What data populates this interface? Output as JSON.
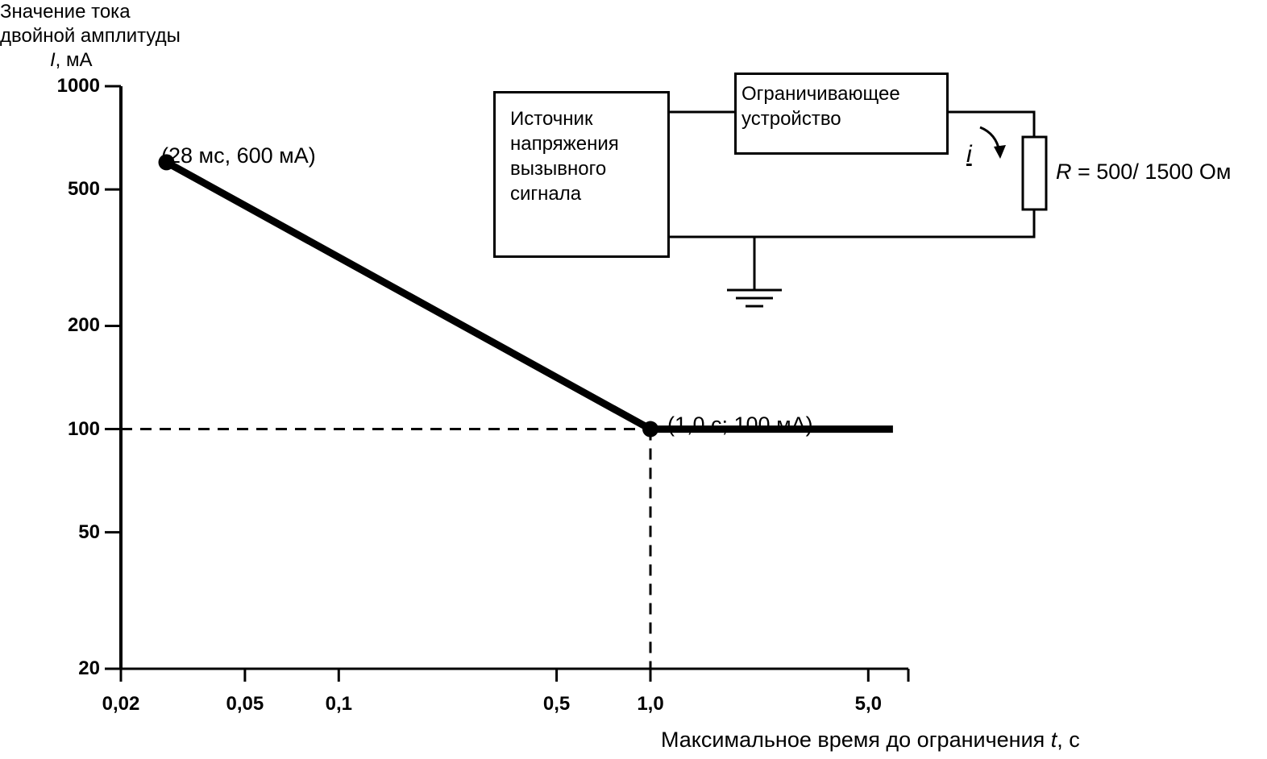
{
  "chart_data": {
    "type": "line",
    "xscale": "log",
    "yscale": "log",
    "xlim": [
      0.02,
      10
    ],
    "ylim": [
      20,
      1000
    ],
    "x_ticks": [
      {
        "value": 0.02,
        "label": "0,02"
      },
      {
        "value": 0.05,
        "label": "0,05"
      },
      {
        "value": 0.1,
        "label": "0,1"
      },
      {
        "value": 0.5,
        "label": "0,5"
      },
      {
        "value": 1.0,
        "label": "1,0"
      },
      {
        "value": 5.0,
        "label": "5,0"
      }
    ],
    "y_ticks": [
      {
        "value": 1000,
        "label": "1000"
      },
      {
        "value": 500,
        "label": "500"
      },
      {
        "value": 200,
        "label": "200"
      },
      {
        "value": 100,
        "label": "100"
      },
      {
        "value": 50,
        "label": "50"
      },
      {
        "value": 20,
        "label": "20"
      }
    ],
    "ylabel_lines": [
      "Значение тока",
      "двойной амплитуды"
    ],
    "ylabel_symbol": "I",
    "ylabel_unit": ", мА",
    "xlabel_text": "Максимальное время до ограничения ",
    "xlabel_symbol": "t",
    "xlabel_unit": ", с",
    "series": [
      {
        "x": [
          0.028,
          1.0,
          6.0
        ],
        "y": [
          600,
          100,
          100
        ]
      }
    ],
    "points": [
      {
        "x": 0.028,
        "y": 600,
        "label": "(28 мс, 600 мА)"
      },
      {
        "x": 1.0,
        "y": 100,
        "label": "(1,0 с; 100 мА)"
      }
    ],
    "reference_lines": [
      {
        "from": [
          0.02,
          100
        ],
        "to": [
          1.0,
          100
        ],
        "style": "dashed"
      },
      {
        "from": [
          1.0,
          100
        ],
        "to": [
          1.0,
          20
        ],
        "style": "dashed"
      }
    ],
    "grid": false
  },
  "circuit": {
    "source_lines": [
      "Источник",
      "напряжения",
      "вызывного",
      "сигнала"
    ],
    "limiter_lines": [
      "Ограничивающее",
      "устройство"
    ],
    "current_symbol": "i",
    "resistor_symbol": "R",
    "resistor_value": " = 500/ 1500 Ом"
  }
}
